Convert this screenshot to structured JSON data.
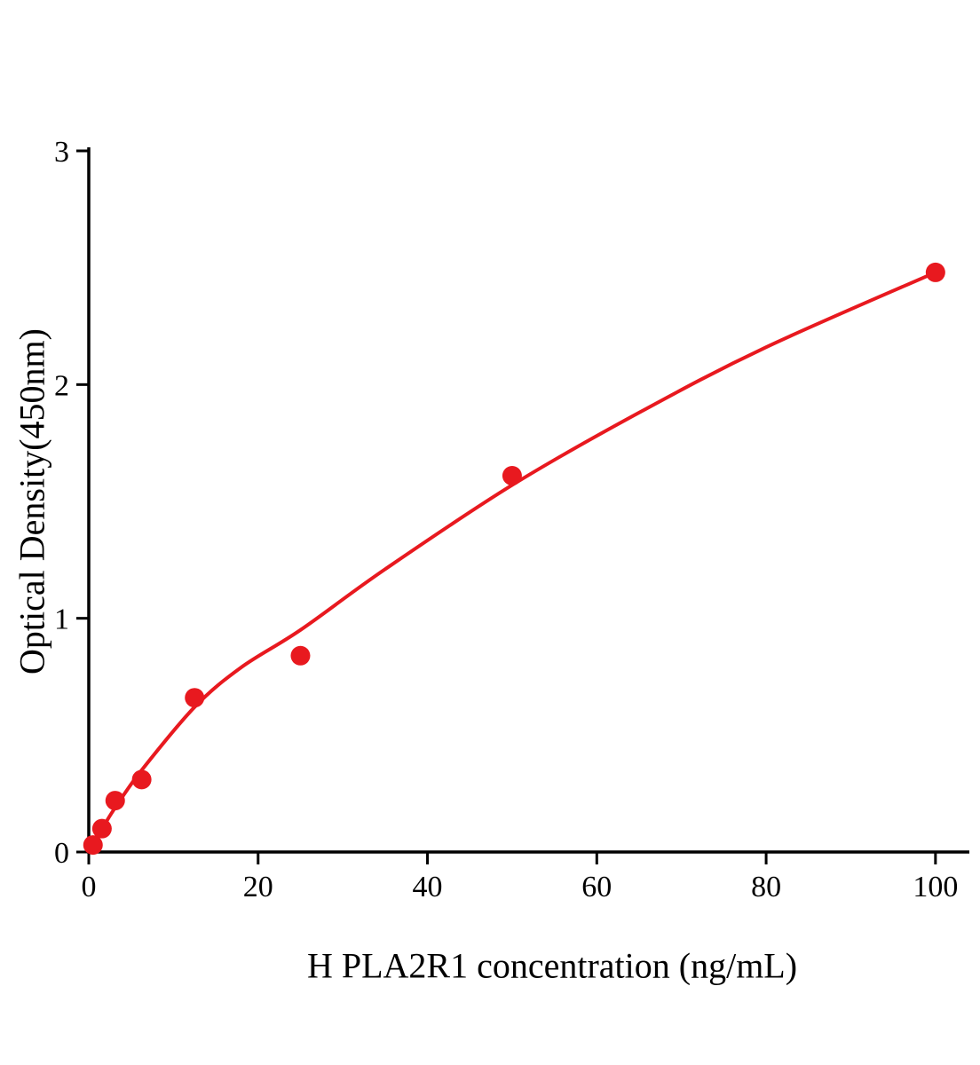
{
  "chart_data": {
    "type": "scatter",
    "title": "",
    "xlabel": "H PLA2R1 concentration (ng/mL)",
    "ylabel": "Optical Density(450nm)",
    "xlim": [
      0,
      104
    ],
    "ylim": [
      0,
      3
    ],
    "xticks": [
      0,
      20,
      40,
      60,
      80,
      100
    ],
    "yticks": [
      0,
      1,
      2,
      3
    ],
    "grid": false,
    "legend_position": "none",
    "accent_color": "#e8191f",
    "axis_color": "#000000",
    "marker_radius": 11,
    "line_width": 4,
    "series": [
      {
        "name": "standard-points",
        "type": "scatter",
        "color": "#e8191f",
        "x": [
          0.5,
          1.56,
          3.12,
          6.25,
          12.5,
          25,
          50,
          100
        ],
        "y": [
          0.03,
          0.1,
          0.22,
          0.31,
          0.66,
          0.84,
          1.61,
          2.48
        ]
      },
      {
        "name": "fit-curve",
        "type": "line",
        "color": "#e8191f",
        "x": [
          0,
          1.56,
          3.12,
          6.25,
          12.5,
          18,
          25,
          35,
          50,
          65,
          80,
          100
        ],
        "y": [
          0.02,
          0.1,
          0.19,
          0.35,
          0.62,
          0.79,
          0.95,
          1.21,
          1.57,
          1.88,
          2.16,
          2.48
        ]
      }
    ]
  }
}
